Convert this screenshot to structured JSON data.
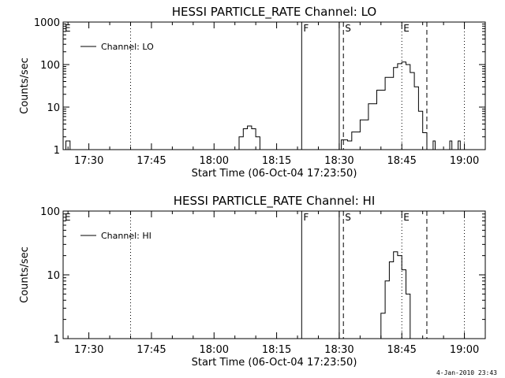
{
  "footer_date": "4-Jan-2010 23:43",
  "chart_data": [
    {
      "type": "line",
      "title": "HESSI PARTICLE_RATE Channel: LO",
      "xlabel": "Start Time (06-Oct-04 17:23:50)",
      "ylabel": "Counts/sec",
      "y_scale": "log",
      "ylim": [
        1,
        1000
      ],
      "ytick_labels": [
        "1",
        "10",
        "100",
        "1000"
      ],
      "xlim": [
        "17:23:50",
        "19:05"
      ],
      "xtick_labels": [
        "17:30",
        "17:45",
        "18:00",
        "18:15",
        "18:30",
        "18:45",
        "19:00"
      ],
      "grid": false,
      "legend": {
        "position": "top-left",
        "entries": [
          "Channel: LO"
        ]
      },
      "markers": [
        {
          "time": "17:40",
          "style": "dotted",
          "label": ""
        },
        {
          "time": "18:21",
          "style": "solid",
          "label": "F"
        },
        {
          "time": "18:30",
          "style": "solid",
          "label": ""
        },
        {
          "time": "18:31",
          "style": "dashed",
          "label": "S"
        },
        {
          "time": "18:45",
          "style": "dotted",
          "label": "E"
        },
        {
          "time": "18:51",
          "style": "dashed",
          "label": ""
        },
        {
          "time": "19:00",
          "style": "dotted",
          "label": ""
        }
      ],
      "corner_label": "E",
      "series": [
        {
          "name": "Channel: LO",
          "segments": [
            {
              "x": [
                "17:24:00",
                "17:24:30",
                "17:25:00",
                "17:25:30"
              ],
              "y": [
                1,
                1.6,
                1.6,
                1
              ]
            },
            {
              "x": [
                "18:05:00",
                "18:06:00",
                "18:07:00",
                "18:08:00",
                "18:09:00",
                "18:10:00",
                "18:11:00"
              ],
              "y": [
                1,
                2.0,
                3.1,
                3.6,
                3.1,
                2.0,
                1
              ]
            },
            {
              "x": [
                "18:30:00",
                "18:30:30",
                "18:31:30",
                "18:32:00",
                "18:33:00",
                "18:35:00",
                "18:37:00",
                "18:39:00",
                "18:41:00",
                "18:43:00",
                "18:44:00",
                "18:45:00",
                "18:46:00",
                "18:47:00",
                "18:48:00",
                "18:49:00",
                "18:50:00",
                "18:51:00"
              ],
              "y": [
                1,
                1.7,
                1.7,
                1.6,
                2.6,
                5.0,
                12,
                25,
                50,
                85,
                105,
                115,
                100,
                65,
                30,
                8,
                2.5,
                1
              ]
            },
            {
              "x": [
                "18:52:00",
                "18:52:30",
                "18:53:00"
              ],
              "y": [
                1,
                1.6,
                1
              ]
            },
            {
              "x": [
                "18:56:00",
                "18:56:30",
                "18:57:00"
              ],
              "y": [
                1,
                1.6,
                1
              ]
            },
            {
              "x": [
                "18:58:00",
                "18:58:30",
                "18:59:00"
              ],
              "y": [
                1,
                1.6,
                1
              ]
            }
          ]
        }
      ]
    },
    {
      "type": "line",
      "title": "HESSI PARTICLE_RATE Channel: HI",
      "xlabel": "Start Time (06-Oct-04 17:23:50)",
      "ylabel": "Counts/sec",
      "y_scale": "log",
      "ylim": [
        1,
        100
      ],
      "ytick_labels": [
        "1",
        "10",
        "100"
      ],
      "xlim": [
        "17:23:50",
        "19:05"
      ],
      "xtick_labels": [
        "17:30",
        "17:45",
        "18:00",
        "18:15",
        "18:30",
        "18:45",
        "19:00"
      ],
      "grid": false,
      "legend": {
        "position": "top-left",
        "entries": [
          "Channel: HI"
        ]
      },
      "markers": [
        {
          "time": "17:40",
          "style": "dotted",
          "label": ""
        },
        {
          "time": "18:21",
          "style": "solid",
          "label": "F"
        },
        {
          "time": "18:30",
          "style": "solid",
          "label": ""
        },
        {
          "time": "18:31",
          "style": "dashed",
          "label": "S"
        },
        {
          "time": "18:45",
          "style": "dotted",
          "label": "E"
        },
        {
          "time": "18:51",
          "style": "dashed",
          "label": ""
        },
        {
          "time": "19:00",
          "style": "dotted",
          "label": ""
        }
      ],
      "corner_label": "E",
      "series": [
        {
          "name": "Channel: HI",
          "segments": [
            {
              "x": [
                "18:39:00",
                "18:40:00",
                "18:41:00",
                "18:42:00",
                "18:43:00",
                "18:44:00",
                "18:45:00",
                "18:46:00",
                "18:47:00"
              ],
              "y": [
                1,
                2.5,
                8,
                16,
                23,
                20,
                12,
                5,
                1
              ]
            }
          ]
        }
      ]
    }
  ]
}
